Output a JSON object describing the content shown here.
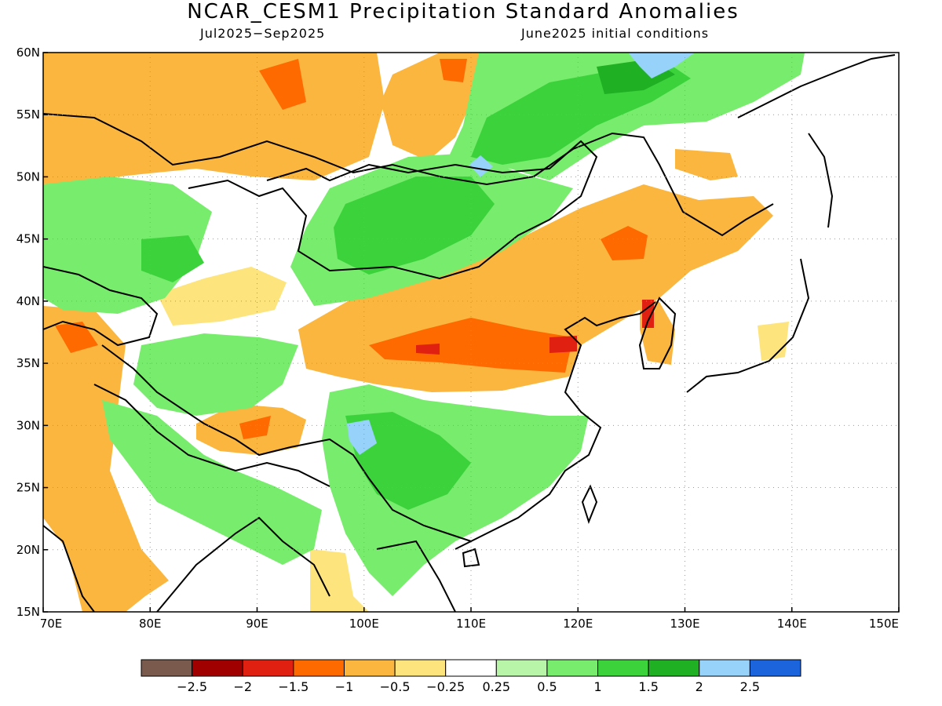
{
  "title": "NCAR_CESM1 Precipitation Standard Anomalies",
  "period": "Jul2025−Sep2025",
  "init": "June2025 initial conditions",
  "lat_labels": [
    "60N",
    "55N",
    "50N",
    "45N",
    "40N",
    "35N",
    "30N",
    "25N",
    "20N",
    "15N"
  ],
  "lon_labels": [
    "70E",
    "80E",
    "90E",
    "100E",
    "110E",
    "120E",
    "130E",
    "140E",
    "150E"
  ],
  "colorbar": {
    "colors": [
      "#7a5a4c",
      "#a00000",
      "#e02010",
      "#ff6a00",
      "#fbb640",
      "#fde47c",
      "#ffffff",
      "#b8f5a8",
      "#78ec6c",
      "#3cd23c",
      "#20b024",
      "#96d2fa",
      "#1c64dc"
    ],
    "labels": [
      "−2.5",
      "−2",
      "−1.5",
      "−1",
      "−0.5",
      "−0.25",
      "0.25",
      "0.5",
      "1",
      "1.5",
      "2",
      "2.5"
    ]
  },
  "map": {
    "lon_range": [
      70,
      150
    ],
    "lat_range": [
      15,
      60
    ]
  }
}
